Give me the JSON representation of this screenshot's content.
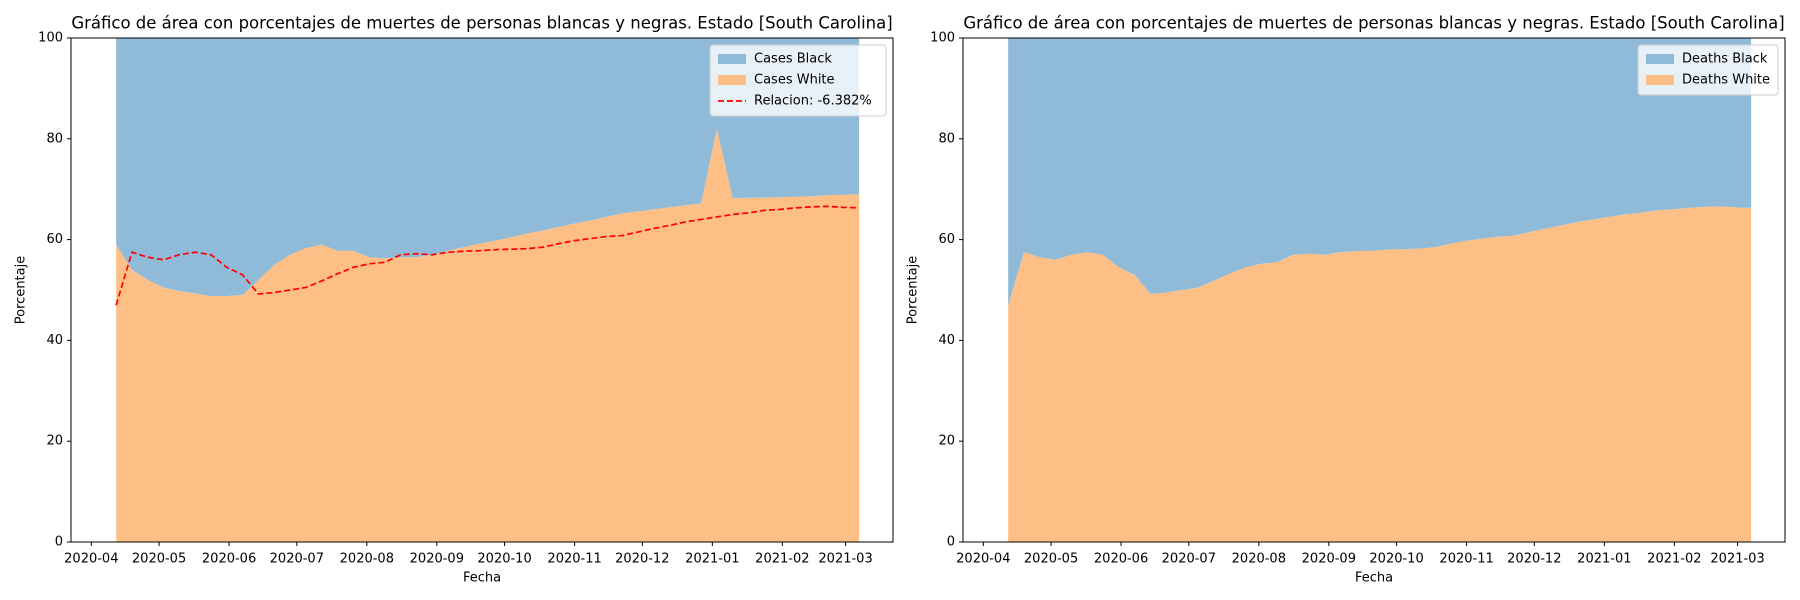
{
  "chart_data": [
    {
      "type": "area",
      "stacked": true,
      "title": "Gráfico de área con porcentajes de muertes de personas blancas y negras. Estado [South Carolina]",
      "xlabel": "Fecha",
      "ylabel": "Porcentaje",
      "legend": "upper right",
      "x": [
        "2020-04-12",
        "2020-04-19",
        "2020-04-26",
        "2020-05-03",
        "2020-05-10",
        "2020-05-17",
        "2020-05-24",
        "2020-05-31",
        "2020-06-07",
        "2020-06-14",
        "2020-06-21",
        "2020-06-28",
        "2020-07-05",
        "2020-07-12",
        "2020-07-19",
        "2020-07-26",
        "2020-08-02",
        "2020-08-09",
        "2020-08-16",
        "2020-08-23",
        "2020-08-30",
        "2020-09-06",
        "2020-09-13",
        "2020-09-20",
        "2020-09-27",
        "2020-10-04",
        "2020-10-11",
        "2020-10-18",
        "2020-10-25",
        "2020-11-01",
        "2020-11-08",
        "2020-11-15",
        "2020-11-22",
        "2020-11-29",
        "2020-12-06",
        "2020-12-13",
        "2020-12-20",
        "2020-12-27",
        "2021-01-03",
        "2021-01-10",
        "2021-01-17",
        "2021-01-24",
        "2021-01-31",
        "2021-02-07",
        "2021-02-14",
        "2021-02-21",
        "2021-02-28",
        "2021-03-07"
      ],
      "series": [
        {
          "name": "Cases Black",
          "type": "area",
          "color": "#8fbbd9",
          "values": [
            41,
            46,
            48,
            49.5,
            50.2,
            50.7,
            51.2,
            51.2,
            51,
            48,
            45,
            43,
            41.7,
            41,
            42.2,
            42.2,
            43.5,
            43.7,
            43.5,
            43.5,
            43,
            42.2,
            41.5,
            40.8,
            40.2,
            39.5,
            38.8,
            38.2,
            37.5,
            36.8,
            36.2,
            35.5,
            34.8,
            34.4,
            34,
            33.6,
            33.2,
            32.8,
            18,
            31.8,
            31.7,
            31.7,
            31.6,
            31.5,
            31.4,
            31.2,
            31.1,
            31
          ]
        },
        {
          "name": "Cases White",
          "type": "area",
          "color": "#fdbf86",
          "values": [
            59,
            54,
            52,
            50.5,
            49.8,
            49.3,
            48.8,
            48.8,
            49,
            52,
            55,
            57,
            58.3,
            59,
            57.8,
            57.8,
            56.5,
            56.3,
            56.5,
            56.5,
            57,
            57.8,
            58.5,
            59.2,
            59.8,
            60.5,
            61.2,
            61.8,
            62.5,
            63.2,
            63.8,
            64.5,
            65.2,
            65.6,
            66,
            66.4,
            66.8,
            67.2,
            82,
            68.2,
            68.3,
            68.3,
            68.4,
            68.5,
            68.6,
            68.8,
            68.9,
            69
          ]
        },
        {
          "name": "Relacion: -6.382%",
          "type": "line",
          "dashed": true,
          "color": "#ff0000",
          "values": [
            47,
            57.5,
            56.5,
            56,
            57,
            57.5,
            57,
            54.5,
            53,
            49.2,
            49.5,
            50,
            50.5,
            51.8,
            53.2,
            54.5,
            55.2,
            55.5,
            57,
            57.2,
            57,
            57.5,
            57.7,
            57.8,
            58,
            58.1,
            58.2,
            58.5,
            59.2,
            59.8,
            60.2,
            60.6,
            60.8,
            61.5,
            62.2,
            62.8,
            63.5,
            64,
            64.5,
            65,
            65.3,
            65.8,
            66,
            66.3,
            66.5,
            66.6,
            66.4,
            66.3
          ]
        }
      ],
      "xlim": [
        "2020-03-23",
        "2021-03-22"
      ],
      "xticks": [
        {
          "value": "2020-04-01",
          "label": "2020-04"
        },
        {
          "value": "2020-05-01",
          "label": "2020-05"
        },
        {
          "value": "2020-06-01",
          "label": "2020-06"
        },
        {
          "value": "2020-07-01",
          "label": "2020-07"
        },
        {
          "value": "2020-08-01",
          "label": "2020-08"
        },
        {
          "value": "2020-09-01",
          "label": "2020-09"
        },
        {
          "value": "2020-10-01",
          "label": "2020-10"
        },
        {
          "value": "2020-11-01",
          "label": "2020-11"
        },
        {
          "value": "2020-12-01",
          "label": "2020-12"
        },
        {
          "value": "2021-01-01",
          "label": "2021-01"
        },
        {
          "value": "2021-02-01",
          "label": "2021-02"
        },
        {
          "value": "2021-03-01",
          "label": "2021-03"
        }
      ],
      "ylim": [
        0,
        100
      ],
      "yticks": [
        0,
        20,
        40,
        60,
        80,
        100
      ]
    },
    {
      "type": "area",
      "stacked": true,
      "title": "Gráfico de área con porcentajes de muertes de personas blancas y negras. Estado [South Carolina]",
      "xlabel": "Fecha",
      "ylabel": "Porcentaje",
      "legend": "upper right",
      "x": [
        "2020-04-12",
        "2020-04-19",
        "2020-04-26",
        "2020-05-03",
        "2020-05-10",
        "2020-05-17",
        "2020-05-24",
        "2020-05-31",
        "2020-06-07",
        "2020-06-14",
        "2020-06-21",
        "2020-06-28",
        "2020-07-05",
        "2020-07-12",
        "2020-07-19",
        "2020-07-26",
        "2020-08-02",
        "2020-08-09",
        "2020-08-16",
        "2020-08-23",
        "2020-08-30",
        "2020-09-06",
        "2020-09-13",
        "2020-09-20",
        "2020-09-27",
        "2020-10-04",
        "2020-10-11",
        "2020-10-18",
        "2020-10-25",
        "2020-11-01",
        "2020-11-08",
        "2020-11-15",
        "2020-11-22",
        "2020-11-29",
        "2020-12-06",
        "2020-12-13",
        "2020-12-20",
        "2020-12-27",
        "2021-01-03",
        "2021-01-10",
        "2021-01-17",
        "2021-01-24",
        "2021-01-31",
        "2021-02-07",
        "2021-02-14",
        "2021-02-21",
        "2021-02-28",
        "2021-03-07"
      ],
      "series": [
        {
          "name": "Deaths Black",
          "type": "area",
          "color": "#8fbbd9",
          "values": [
            53,
            42.5,
            43.5,
            44,
            43,
            42.5,
            43,
            45.5,
            47,
            50.8,
            50.5,
            50,
            49.5,
            48.2,
            46.8,
            45.5,
            44.8,
            44.5,
            43,
            42.8,
            43,
            42.5,
            42.3,
            42.2,
            42,
            41.9,
            41.8,
            41.5,
            40.8,
            40.2,
            39.8,
            39.4,
            39.2,
            38.5,
            37.8,
            37.2,
            36.5,
            36,
            35.5,
            35,
            34.7,
            34.2,
            34,
            33.7,
            33.5,
            33.4,
            33.6,
            33.7
          ]
        },
        {
          "name": "Deaths White",
          "type": "area",
          "color": "#fdbf86",
          "values": [
            47,
            57.5,
            56.5,
            56,
            57,
            57.5,
            57,
            54.5,
            53,
            49.2,
            49.5,
            50,
            50.5,
            51.8,
            53.2,
            54.5,
            55.2,
            55.5,
            57,
            57.2,
            57,
            57.5,
            57.7,
            57.8,
            58,
            58.1,
            58.2,
            58.5,
            59.2,
            59.8,
            60.2,
            60.6,
            60.8,
            61.5,
            62.2,
            62.8,
            63.5,
            64,
            64.5,
            65,
            65.3,
            65.8,
            66,
            66.3,
            66.5,
            66.6,
            66.4,
            66.3
          ]
        }
      ],
      "xlim": [
        "2020-03-23",
        "2021-03-22"
      ],
      "xticks": [
        {
          "value": "2020-04-01",
          "label": "2020-04"
        },
        {
          "value": "2020-05-01",
          "label": "2020-05"
        },
        {
          "value": "2020-06-01",
          "label": "2020-06"
        },
        {
          "value": "2020-07-01",
          "label": "2020-07"
        },
        {
          "value": "2020-08-01",
          "label": "2020-08"
        },
        {
          "value": "2020-09-01",
          "label": "2020-09"
        },
        {
          "value": "2020-10-01",
          "label": "2020-10"
        },
        {
          "value": "2020-11-01",
          "label": "2020-11"
        },
        {
          "value": "2020-12-01",
          "label": "2020-12"
        },
        {
          "value": "2021-01-01",
          "label": "2021-01"
        },
        {
          "value": "2021-02-01",
          "label": "2021-02"
        },
        {
          "value": "2021-03-01",
          "label": "2021-03"
        }
      ],
      "ylim": [
        0,
        100
      ],
      "yticks": [
        0,
        20,
        40,
        60,
        80,
        100
      ]
    }
  ]
}
